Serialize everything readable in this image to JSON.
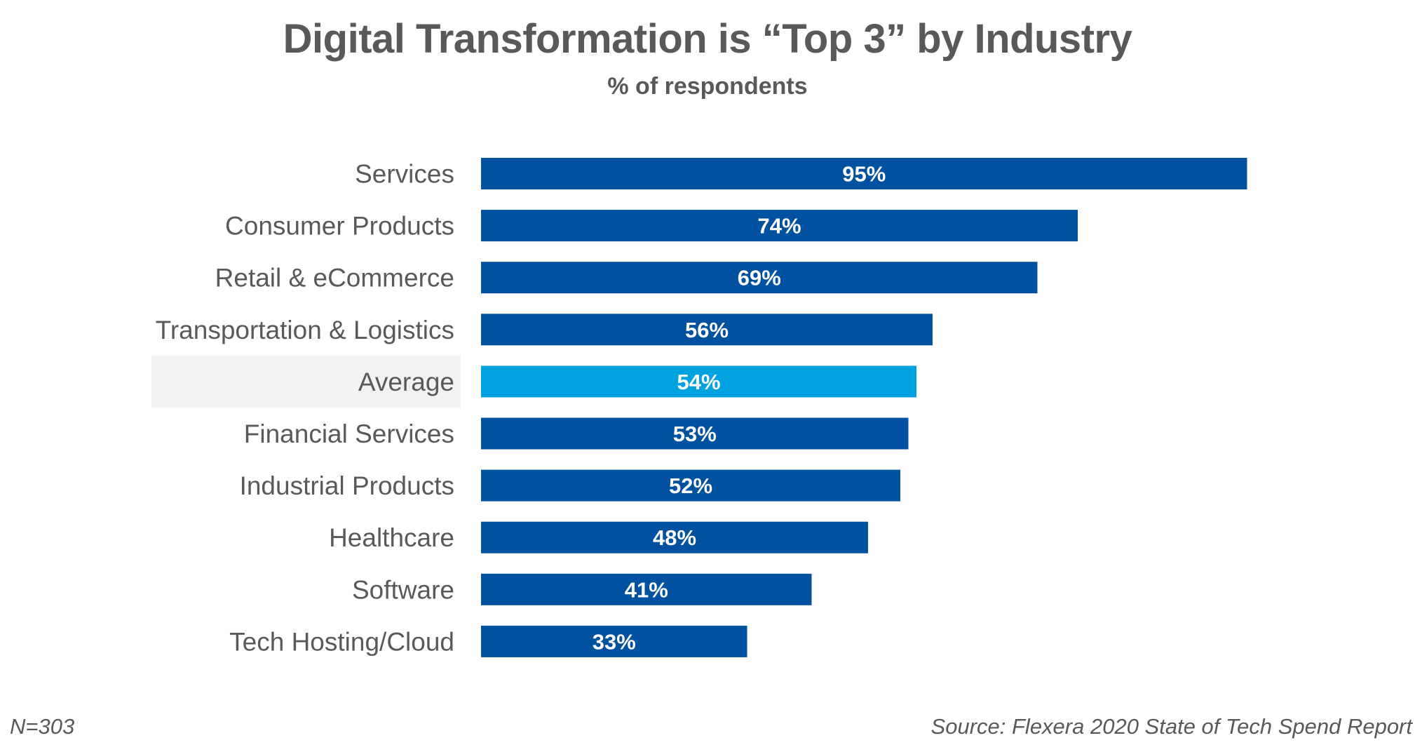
{
  "chart_data": {
    "type": "bar",
    "orientation": "horizontal",
    "title": "Digital Transformation is “Top 3” by Industry",
    "subtitle": "% of respondents",
    "xlabel": "",
    "ylabel": "",
    "xlim": [
      0,
      100
    ],
    "grid": false,
    "legend": null,
    "categories": [
      "Services",
      "Consumer Products",
      "Retail & eCommerce",
      "Transportation & Logistics",
      "Average",
      "Financial Services",
      "Industrial Products",
      "Healthcare",
      "Software",
      "Tech Hosting/Cloud"
    ],
    "values": [
      95,
      74,
      69,
      56,
      54,
      53,
      52,
      48,
      41,
      33
    ],
    "value_labels": [
      "95%",
      "74%",
      "69%",
      "56%",
      "54%",
      "53%",
      "52%",
      "48%",
      "41%",
      "33%"
    ],
    "highlighted_category": "Average",
    "colors": {
      "bar": "#0051a0",
      "highlight_bar": "#00a2e0",
      "highlight_label_bg": "#f2f2f2",
      "text": "#595959",
      "value_text": "#ffffff"
    }
  },
  "footer": {
    "sample_size": "N=303",
    "source": "Source: Flexera 2020 State of Tech Spend Report"
  }
}
